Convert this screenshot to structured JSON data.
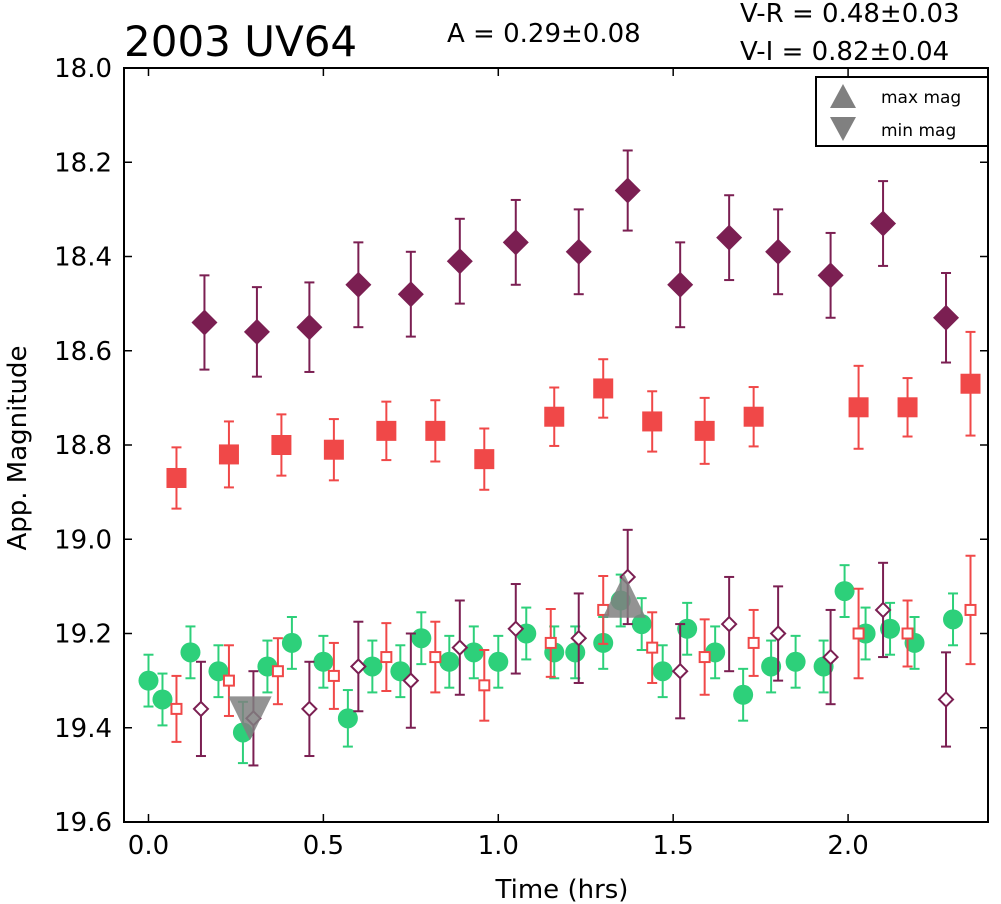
{
  "chart_data": {
    "type": "scatter",
    "title": "2003 UV64",
    "amplitude_text": "A  = 0.29±0.08",
    "color_vr_text": "V-R = 0.48±0.03",
    "color_vi_text": "V-I  = 0.82±0.04",
    "xlabel": "Time (hrs)",
    "ylabel": "App. Magnitude",
    "xlim": [
      -0.07,
      2.4
    ],
    "ylim": [
      19.6,
      18.0
    ],
    "y_inverted": true,
    "grid": false,
    "xticks": [
      0.0,
      0.5,
      1.0,
      1.5,
      2.0
    ],
    "xtick_labels": [
      "0.0",
      "0.5",
      "1.0",
      "1.5",
      "2.0"
    ],
    "yticks": [
      18.0,
      18.2,
      18.4,
      18.6,
      18.8,
      19.0,
      19.2,
      19.4,
      19.6
    ],
    "ytick_labels": [
      "18.0",
      "18.2",
      "18.4",
      "18.6",
      "18.8",
      "19.0",
      "19.2",
      "19.4",
      "19.6"
    ],
    "legend": {
      "placement": "top-right",
      "entries": [
        {
          "label": "max mag",
          "marker": "triangle-up",
          "color": "#808080"
        },
        {
          "label": "min mag",
          "marker": "triangle-down",
          "color": "#808080"
        }
      ]
    },
    "series": [
      {
        "marker": "diamond-filled",
        "color": "#7b1f52",
        "x": [
          0.16,
          0.31,
          0.46,
          0.6,
          0.75,
          0.89,
          1.05,
          1.23,
          1.37,
          1.52,
          1.66,
          1.8,
          1.95,
          2.1,
          2.28
        ],
        "y": [
          18.54,
          18.56,
          18.55,
          18.46,
          18.48,
          18.41,
          18.37,
          18.39,
          18.26,
          18.46,
          18.36,
          18.39,
          18.44,
          18.33,
          18.53
        ],
        "err": [
          0.1,
          0.095,
          0.095,
          0.09,
          0.09,
          0.09,
          0.09,
          0.09,
          0.085,
          0.09,
          0.09,
          0.09,
          0.09,
          0.09,
          0.095
        ]
      },
      {
        "marker": "square-filled",
        "color": "#f04848",
        "x": [
          0.08,
          0.23,
          0.38,
          0.53,
          0.68,
          0.82,
          0.96,
          1.16,
          1.3,
          1.44,
          1.59,
          1.73,
          2.03,
          2.17,
          2.35
        ],
        "y": [
          18.87,
          18.82,
          18.8,
          18.81,
          18.77,
          18.77,
          18.83,
          18.74,
          18.68,
          18.75,
          18.77,
          18.74,
          18.72,
          18.72,
          18.67
        ],
        "err": [
          0.065,
          0.07,
          0.065,
          0.065,
          0.062,
          0.065,
          0.065,
          0.062,
          0.062,
          0.064,
          0.07,
          0.063,
          0.088,
          0.062,
          0.11
        ]
      },
      {
        "marker": "circle-filled",
        "color": "#2dd07a",
        "x": [
          0.0,
          0.04,
          0.12,
          0.2,
          0.27,
          0.34,
          0.41,
          0.5,
          0.57,
          0.64,
          0.72,
          0.78,
          0.86,
          0.93,
          1.0,
          1.08,
          1.16,
          1.22,
          1.3,
          1.35,
          1.41,
          1.47,
          1.54,
          1.62,
          1.7,
          1.78,
          1.85,
          1.93,
          1.99,
          2.05,
          2.12,
          2.19,
          2.3
        ],
        "y": [
          19.3,
          19.34,
          19.24,
          19.28,
          19.41,
          19.27,
          19.22,
          19.26,
          19.38,
          19.27,
          19.28,
          19.21,
          19.26,
          19.24,
          19.26,
          19.2,
          19.24,
          19.24,
          19.22,
          19.13,
          19.18,
          19.28,
          19.19,
          19.24,
          19.33,
          19.27,
          19.26,
          19.27,
          19.11,
          19.2,
          19.19,
          19.22,
          19.17
        ],
        "err": [
          0.055,
          0.055,
          0.055,
          0.055,
          0.065,
          0.055,
          0.055,
          0.055,
          0.06,
          0.055,
          0.055,
          0.055,
          0.055,
          0.055,
          0.055,
          0.055,
          0.055,
          0.055,
          0.055,
          0.055,
          0.055,
          0.055,
          0.055,
          0.055,
          0.055,
          0.055,
          0.055,
          0.055,
          0.055,
          0.055,
          0.055,
          0.055,
          0.055
        ]
      },
      {
        "marker": "square-open",
        "color": "#f04848",
        "x": [
          0.08,
          0.23,
          0.37,
          0.53,
          0.68,
          0.82,
          0.96,
          1.15,
          1.3,
          1.44,
          1.59,
          1.73,
          2.03,
          2.17,
          2.35
        ],
        "y": [
          19.36,
          19.3,
          19.28,
          19.29,
          19.25,
          19.25,
          19.31,
          19.22,
          19.15,
          19.23,
          19.25,
          19.22,
          19.2,
          19.2,
          19.15
        ],
        "err": [
          0.07,
          0.075,
          0.07,
          0.07,
          0.072,
          0.075,
          0.075,
          0.072,
          0.072,
          0.075,
          0.08,
          0.07,
          0.095,
          0.07,
          0.115
        ]
      },
      {
        "marker": "diamond-open",
        "color": "#7b1f52",
        "x": [
          0.15,
          0.3,
          0.46,
          0.6,
          0.75,
          0.89,
          1.05,
          1.23,
          1.37,
          1.52,
          1.66,
          1.8,
          1.95,
          2.1,
          2.28
        ],
        "y": [
          19.36,
          19.38,
          19.36,
          19.27,
          19.3,
          19.23,
          19.19,
          19.21,
          19.08,
          19.28,
          19.18,
          19.2,
          19.25,
          19.15,
          19.34
        ],
        "err": [
          0.1,
          0.1,
          0.1,
          0.095,
          0.1,
          0.1,
          0.095,
          0.095,
          0.1,
          0.1,
          0.1,
          0.1,
          0.1,
          0.1,
          0.1
        ]
      }
    ],
    "extrema_markers": [
      {
        "label": "min mag",
        "marker": "triangle-down",
        "x": 0.29,
        "y": 19.38,
        "color": "#808080"
      },
      {
        "label": "max mag",
        "marker": "triangle-up",
        "x": 1.36,
        "y": 19.12,
        "color": "#808080"
      }
    ]
  }
}
